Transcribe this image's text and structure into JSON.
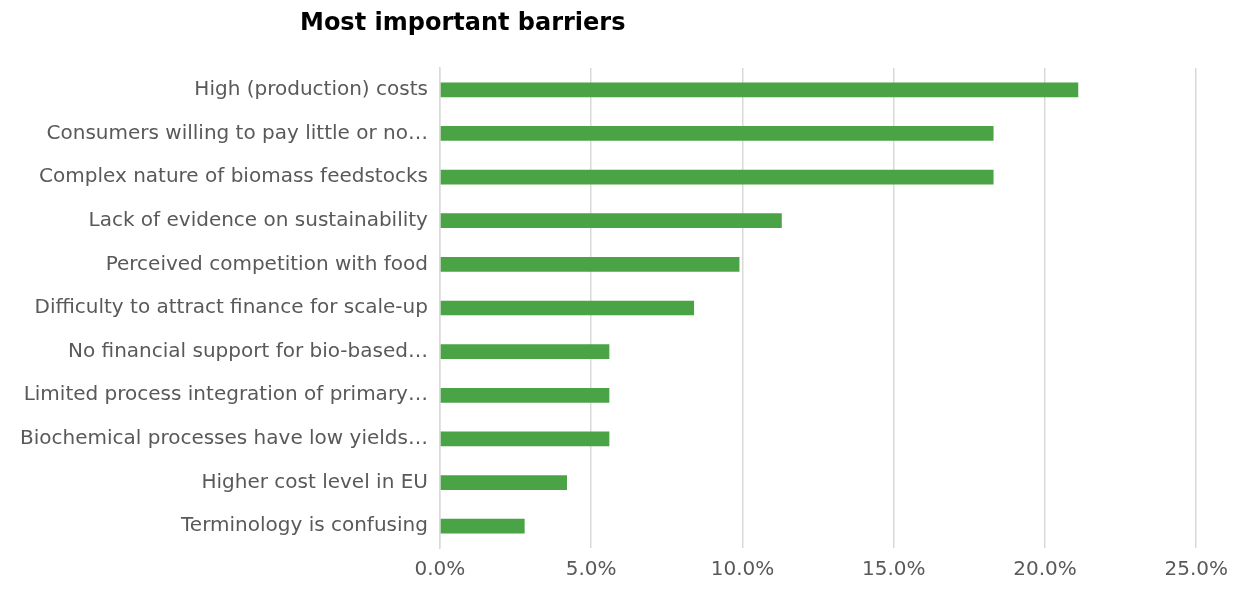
{
  "chart_data": {
    "type": "bar",
    "orientation": "horizontal",
    "title": "Most important barriers",
    "categories": [
      "High (production) costs",
      "Consumers willing to pay little or no…",
      "Complex nature of biomass feedstocks",
      "Lack of evidence on sustainability",
      "Perceived competition with food",
      "Difficulty to attract finance for scale-up",
      "No financial support for bio-based…",
      "Limited process integration of primary…",
      "Biochemical processes have low yields…",
      "Higher cost level in EU",
      "Terminology is confusing"
    ],
    "values": [
      21.1,
      18.3,
      18.3,
      11.3,
      9.9,
      8.4,
      5.6,
      5.6,
      5.6,
      4.2,
      2.8
    ],
    "color": "#4aa345",
    "xlim": [
      0,
      25
    ],
    "xticks": [
      {
        "value": 0,
        "label": "0.0%"
      },
      {
        "value": 5,
        "label": "5.0%"
      },
      {
        "value": 10,
        "label": "10.0%"
      },
      {
        "value": 15,
        "label": "15.0%"
      },
      {
        "value": 20,
        "label": "20.0%"
      },
      {
        "value": 25,
        "label": "25.0%"
      }
    ],
    "grid": "x",
    "legend": false
  }
}
